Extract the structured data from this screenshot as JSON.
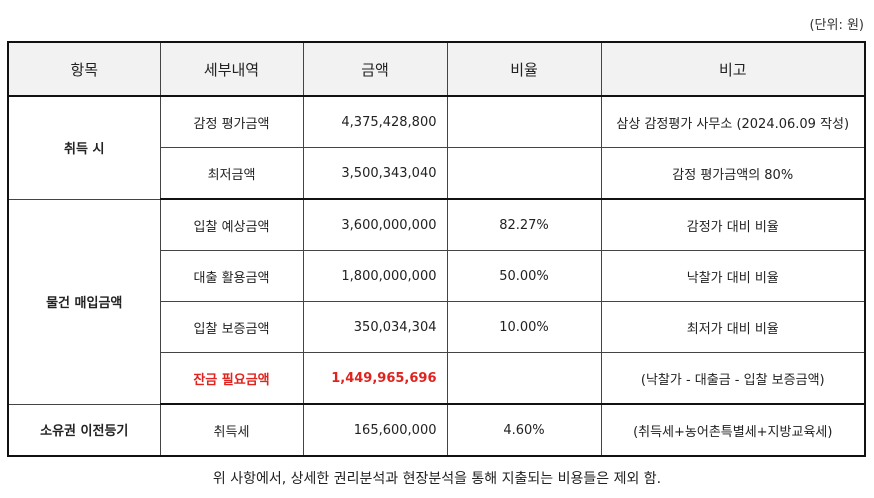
{
  "unit_label": "(단위: 원)",
  "headers": [
    "항목",
    "세부내역",
    "금액",
    "비율",
    "비고"
  ],
  "groups": [
    {
      "category": "취득 시",
      "rows": [
        {
          "item": "감정 평가금액",
          "amount": "4,375,428,800",
          "ratio": "",
          "note": "삼상 감정평가 사무소 (2024.06.09 작성)"
        },
        {
          "item": "최저금액",
          "amount": "3,500,343,040",
          "ratio": "",
          "note": "감정 평가금액의 80%"
        }
      ]
    },
    {
      "category": "물건 매입금액",
      "rows": [
        {
          "item": "입찰 예상금액",
          "amount": "3,600,000,000",
          "ratio": "82.27%",
          "note": "감정가 대비 비율"
        },
        {
          "item": "대출 활용금액",
          "amount": "1,800,000,000",
          "ratio": "50.00%",
          "note": "낙찰가 대비 비율"
        },
        {
          "item": "입찰 보증금액",
          "amount": "350,034,304",
          "ratio": "10.00%",
          "note": "최저가 대비 비율"
        },
        {
          "item": "잔금 필요금액",
          "amount": "1,449,965,696",
          "ratio": "",
          "note": "(낙찰가 - 대출금 - 입찰 보증금액)",
          "highlight": true,
          "highlight_color": "#e0231e"
        }
      ]
    },
    {
      "category": "소유권 이전등기",
      "rows": [
        {
          "item": "취득세",
          "amount": "165,600,000",
          "ratio": "4.60%",
          "note": "(취득세+농어촌특별세+지방교육세)"
        }
      ]
    }
  ],
  "footer_note": "위 사항에서, 상세한 권리분석과 현장분석을 통해 지출되는 비용들은 제외 함."
}
